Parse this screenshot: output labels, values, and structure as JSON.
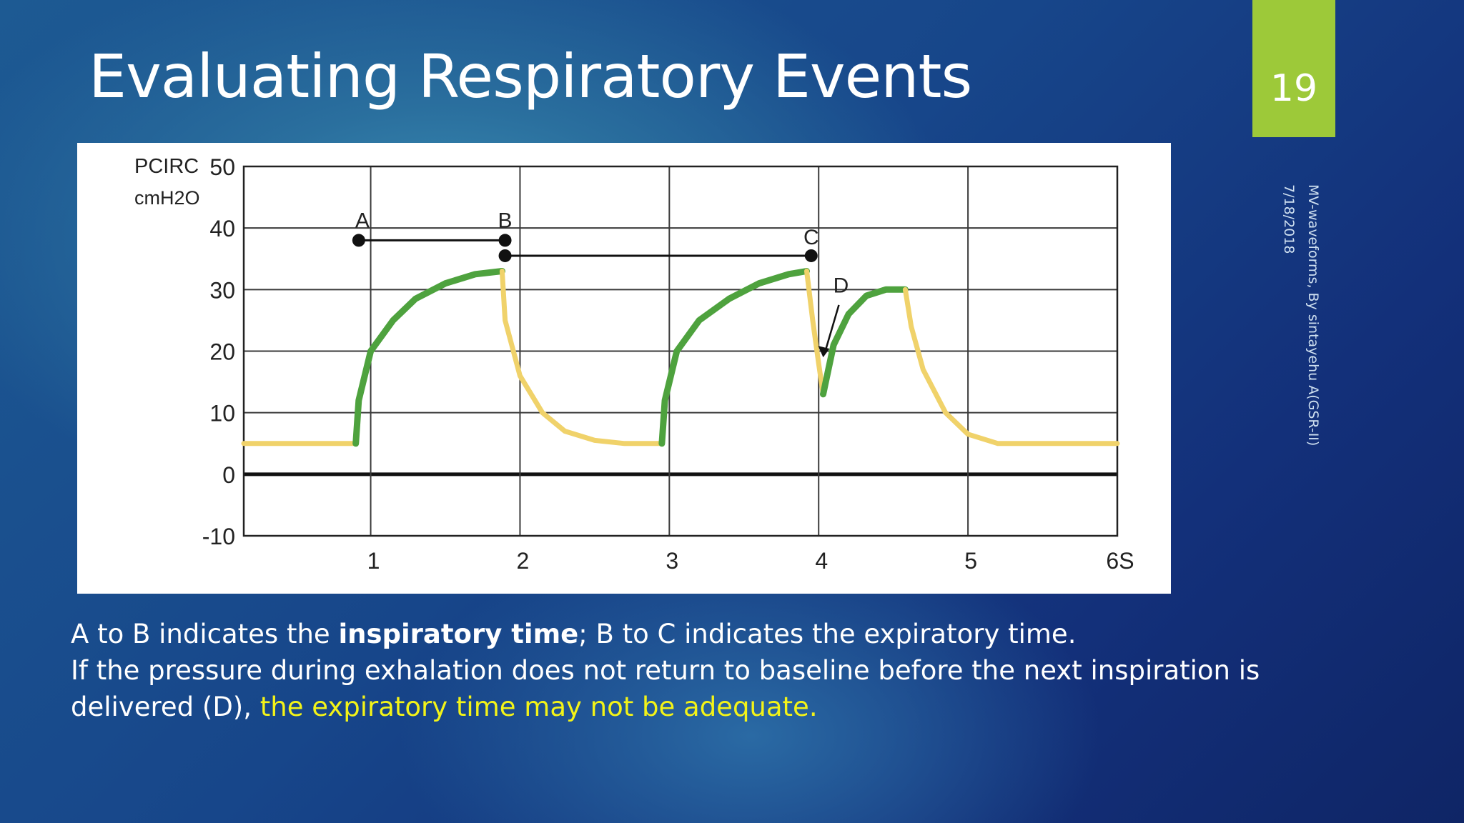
{
  "slide": {
    "title": "Evaluating Respiratory Events",
    "number": "19",
    "footer_line1": "MV-waveforms, By sintayehu A(GSR-II)",
    "footer_line2": "7/18/2018",
    "accent_color": "#9dc939"
  },
  "body": {
    "p1_a": "A to B indicates the ",
    "p1_bold": "inspiratory time",
    "p1_b": "; B to C indicates the expiratory time.",
    "p2": " If the pressure during exhalation does not return to baseline before the next inspiration is",
    "p3_a": "delivered (D), ",
    "p3_highlight": "the expiratory time may not be adequate.",
    "highlight_color": "#f3f318"
  },
  "chart_data": {
    "type": "line",
    "ylabel_line1": "PCIRC",
    "ylabel_line2": "cmH2O",
    "ylim": [
      -10,
      50
    ],
    "y_ticks": [
      "50",
      "40",
      "30",
      "20",
      "10",
      "0",
      "-10"
    ],
    "y_tick_values": [
      50,
      40,
      30,
      20,
      10,
      0,
      -10
    ],
    "xlim": [
      0.15,
      6
    ],
    "x_ticks": [
      "1",
      "2",
      "3",
      "4",
      "5",
      "6S"
    ],
    "x_tick_values": [
      1,
      2,
      3,
      4,
      5,
      6
    ],
    "grid": true,
    "colors": {
      "inspiration": "#4ea23e",
      "expiration": "#f0d26a",
      "axis": "#111111",
      "grid": "#3a3a3a"
    },
    "series": [
      {
        "phase": "expiration",
        "x": [
          0.15,
          0.9
        ],
        "y": [
          5,
          5
        ]
      },
      {
        "phase": "inspiration",
        "x": [
          0.9,
          0.92,
          1.0,
          1.15,
          1.3,
          1.5,
          1.7,
          1.88
        ],
        "y": [
          5,
          12,
          20,
          25,
          28.5,
          31,
          32.5,
          33
        ]
      },
      {
        "phase": "expiration",
        "x": [
          1.88,
          1.9,
          2.0,
          2.15,
          2.3,
          2.5,
          2.7,
          2.95
        ],
        "y": [
          33,
          25,
          16,
          10,
          7,
          5.5,
          5,
          5
        ]
      },
      {
        "phase": "inspiration",
        "x": [
          2.95,
          2.97,
          3.05,
          3.2,
          3.4,
          3.6,
          3.8,
          3.92
        ],
        "y": [
          5,
          12,
          20,
          25,
          28.5,
          31,
          32.5,
          33
        ]
      },
      {
        "phase": "expiration",
        "x": [
          3.92,
          3.96,
          4.0,
          4.03
        ],
        "y": [
          33,
          25,
          18,
          13
        ]
      },
      {
        "phase": "inspiration",
        "x": [
          4.03,
          4.1,
          4.2,
          4.32,
          4.45,
          4.58
        ],
        "y": [
          13,
          21,
          26,
          29,
          30,
          30
        ]
      },
      {
        "phase": "expiration",
        "x": [
          4.58,
          4.62,
          4.7,
          4.85,
          5.0,
          5.2,
          6.0
        ],
        "y": [
          30,
          24,
          17,
          10,
          6.5,
          5,
          5
        ]
      }
    ],
    "markers": {
      "AB": {
        "label_a": "A",
        "label_b": "B",
        "x1": 0.92,
        "x2": 1.9,
        "y": 38
      },
      "BC": {
        "label_c": "C",
        "x1": 1.9,
        "x2": 3.95,
        "y": 35.5
      },
      "D": {
        "label": "D",
        "arrow_to_x": 4.03,
        "arrow_to_y": 19
      }
    }
  }
}
